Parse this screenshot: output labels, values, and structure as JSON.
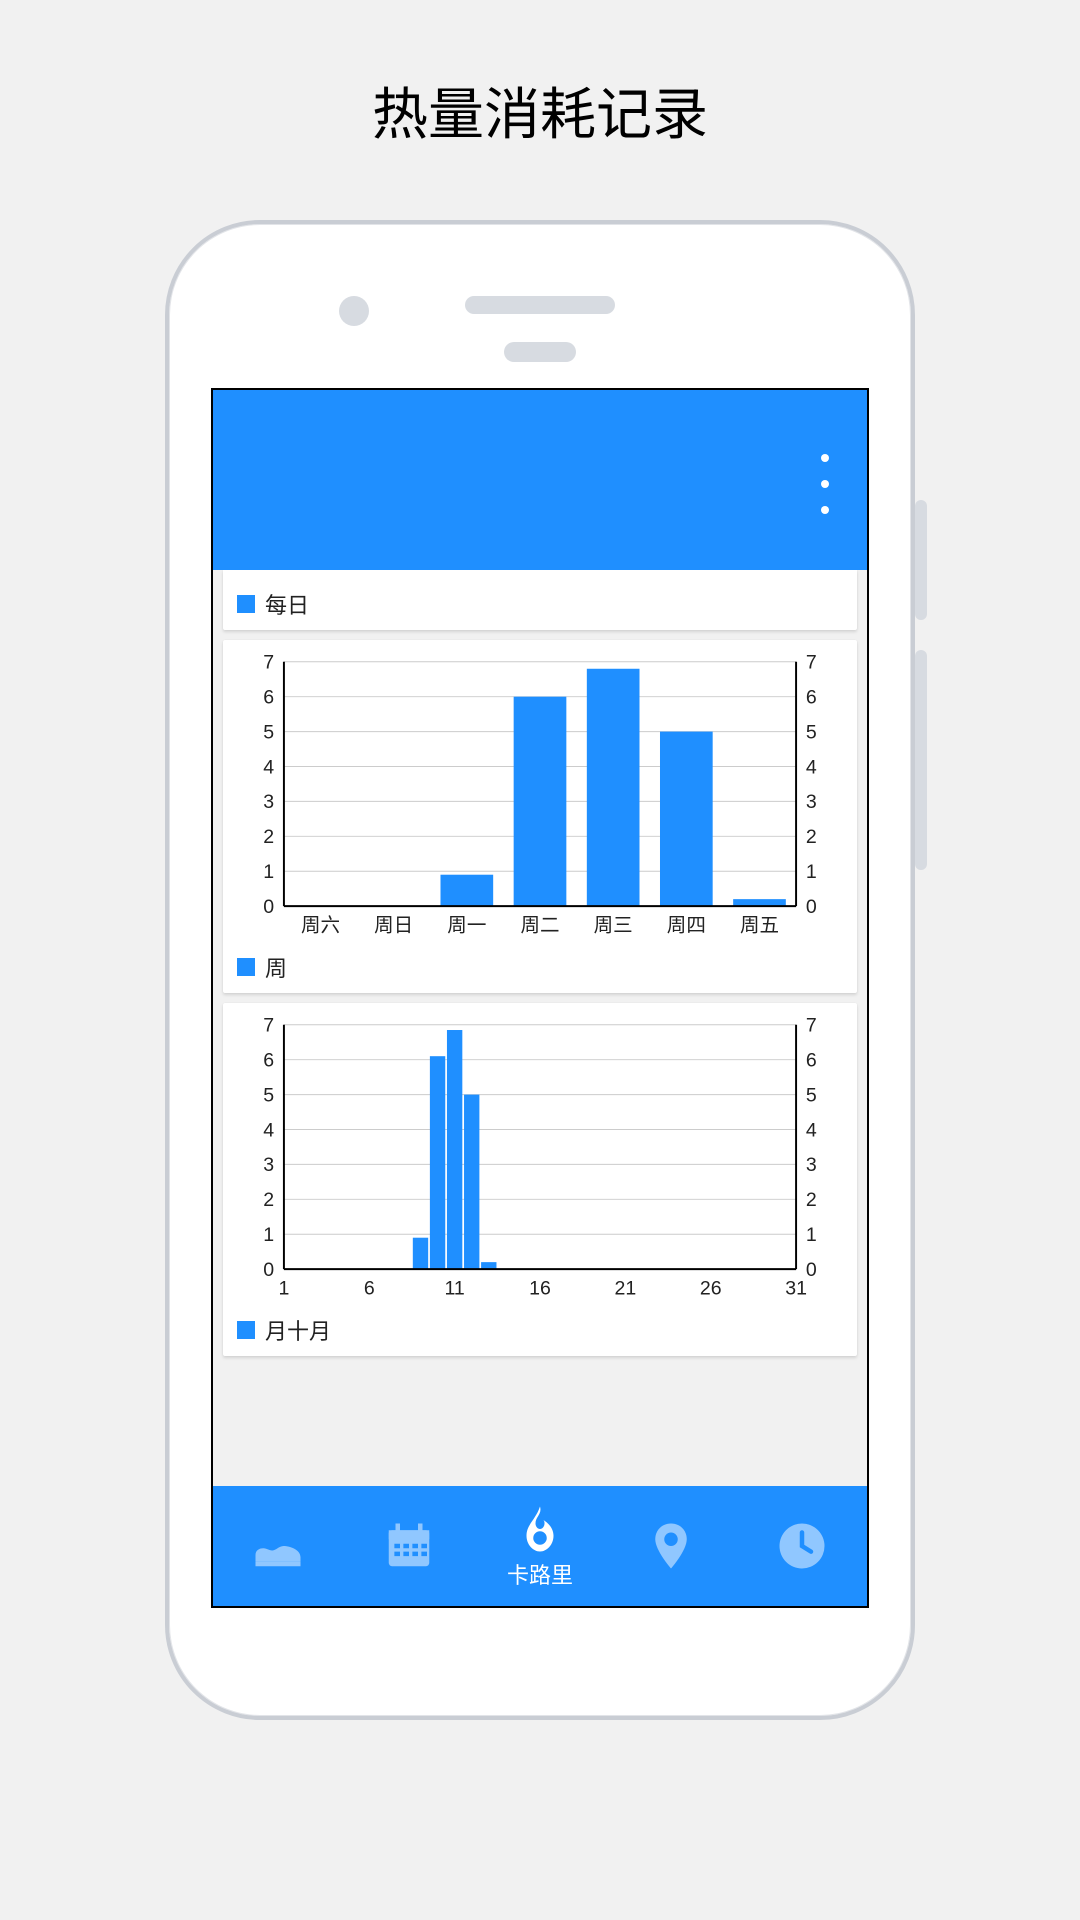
{
  "page": {
    "title": "热量消耗记录"
  },
  "colors": {
    "page_bg": "#f1f1f1",
    "phone_border": "#c9cdd4",
    "appbar_bg": "#1f8fff",
    "bottomnav_bg": "#1f8fff",
    "card_bg": "#ffffff",
    "bar_color": "#1f8fff",
    "grid_color": "#cccccc",
    "axis_color": "#000000",
    "axis_label_color": "#222222",
    "nav_inactive": "#90c7ff",
    "nav_active": "#ffffff"
  },
  "typography": {
    "page_title_fontsize": 56,
    "axis_label_fontsize": 20,
    "legend_fontsize": 22,
    "nav_label_fontsize": 22
  },
  "daily_card": {
    "legend_label": "每日",
    "legend_color": "#1f8fff"
  },
  "week_chart": {
    "type": "bar",
    "legend_label": "周",
    "legend_color": "#1f8fff",
    "categories": [
      "周六",
      "周日",
      "周一",
      "周二",
      "周三",
      "周四",
      "周五"
    ],
    "values": [
      0,
      0,
      0.9,
      6.0,
      6.8,
      5.0,
      0.2
    ],
    "ylim": [
      0,
      7
    ],
    "ytick_step": 1,
    "bar_color": "#1f8fff",
    "grid_color": "#cccccc",
    "axis_color": "#000000",
    "background_color": "#ffffff",
    "show_right_axis": true,
    "bar_width": 0.72,
    "axis_label_fontsize": 20
  },
  "month_chart": {
    "type": "bar",
    "legend_label": "月十月",
    "legend_color": "#1f8fff",
    "x_domain": [
      1,
      31
    ],
    "x_ticks": [
      1,
      6,
      11,
      16,
      21,
      26,
      31
    ],
    "x_values": [
      9,
      10,
      11,
      12,
      13
    ],
    "values": [
      0.9,
      6.1,
      6.85,
      5.0,
      0.2
    ],
    "ylim": [
      0,
      7
    ],
    "ytick_step": 1,
    "bar_color": "#1f8fff",
    "grid_color": "#cccccc",
    "axis_color": "#000000",
    "background_color": "#ffffff",
    "show_right_axis": true,
    "bar_width_days": 0.9,
    "axis_label_fontsize": 20
  },
  "bottomnav": {
    "items": [
      {
        "name": "shoe",
        "label": "",
        "active": false
      },
      {
        "name": "calendar",
        "label": "",
        "active": false
      },
      {
        "name": "calories",
        "label": "卡路里",
        "active": true
      },
      {
        "name": "location",
        "label": "",
        "active": false
      },
      {
        "name": "clock",
        "label": "",
        "active": false
      }
    ]
  }
}
